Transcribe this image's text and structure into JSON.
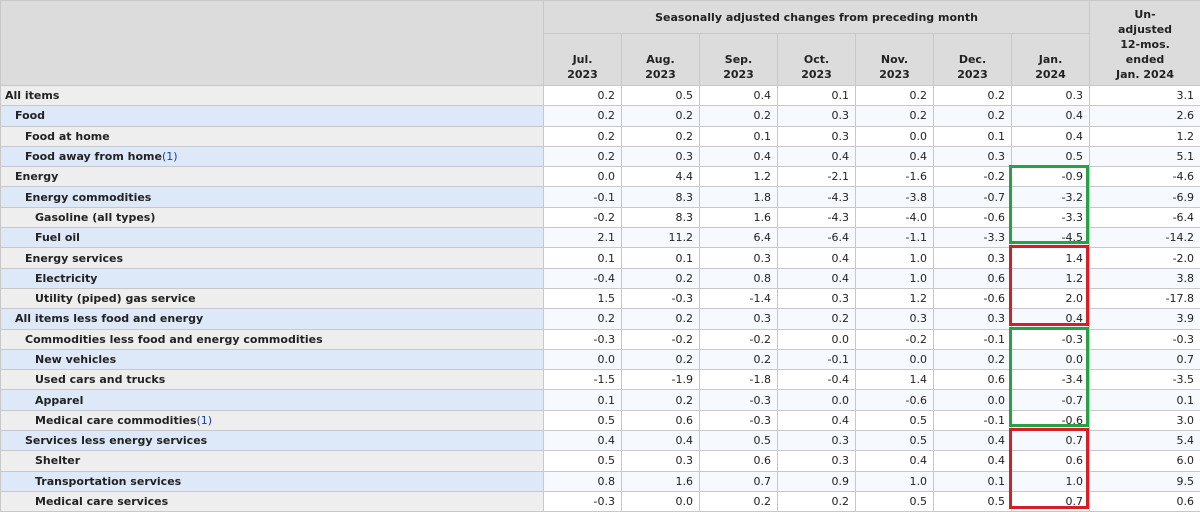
{
  "header": {
    "group_label": "Seasonally adjusted changes from preceding month",
    "months": [
      {
        "line1": "Jul.",
        "line2": "2023"
      },
      {
        "line1": "Aug.",
        "line2": "2023"
      },
      {
        "line1": "Sep.",
        "line2": "2023"
      },
      {
        "line1": "Oct.",
        "line2": "2023"
      },
      {
        "line1": "Nov.",
        "line2": "2023"
      },
      {
        "line1": "Dec.",
        "line2": "2023"
      },
      {
        "line1": "Jan.",
        "line2": "2024"
      }
    ],
    "unadjusted": {
      "l1": "Un-",
      "l2": "adjusted",
      "l3": "12-mos.",
      "l4": "ended",
      "l5": "Jan. 2024"
    }
  },
  "rows": [
    {
      "label": "All items",
      "values": [
        "0.2",
        "0.5",
        "0.4",
        "0.1",
        "0.2",
        "0.2",
        "0.3",
        "3.1"
      ]
    },
    {
      "label": "Food",
      "values": [
        "0.2",
        "0.2",
        "0.2",
        "0.3",
        "0.2",
        "0.2",
        "0.4",
        "2.6"
      ]
    },
    {
      "label": "Food at home",
      "values": [
        "0.2",
        "0.2",
        "0.1",
        "0.3",
        "0.0",
        "0.1",
        "0.4",
        "1.2"
      ]
    },
    {
      "label": "Food away from home",
      "footnote": "(1)",
      "values": [
        "0.2",
        "0.3",
        "0.4",
        "0.4",
        "0.4",
        "0.3",
        "0.5",
        "5.1"
      ]
    },
    {
      "label": "Energy",
      "values": [
        "0.0",
        "4.4",
        "1.2",
        "-2.1",
        "-1.6",
        "-0.2",
        "-0.9",
        "-4.6"
      ]
    },
    {
      "label": "Energy commodities",
      "values": [
        "-0.1",
        "8.3",
        "1.8",
        "-4.3",
        "-3.8",
        "-0.7",
        "-3.2",
        "-6.9"
      ]
    },
    {
      "label": "Gasoline (all types)",
      "values": [
        "-0.2",
        "8.3",
        "1.6",
        "-4.3",
        "-4.0",
        "-0.6",
        "-3.3",
        "-6.4"
      ]
    },
    {
      "label": "Fuel oil",
      "values": [
        "2.1",
        "11.2",
        "6.4",
        "-6.4",
        "-1.1",
        "-3.3",
        "-4.5",
        "-14.2"
      ]
    },
    {
      "label": "Energy services",
      "values": [
        "0.1",
        "0.1",
        "0.3",
        "0.4",
        "1.0",
        "0.3",
        "1.4",
        "-2.0"
      ]
    },
    {
      "label": "Electricity",
      "values": [
        "-0.4",
        "0.2",
        "0.8",
        "0.4",
        "1.0",
        "0.6",
        "1.2",
        "3.8"
      ]
    },
    {
      "label": "Utility (piped) gas service",
      "values": [
        "1.5",
        "-0.3",
        "-1.4",
        "0.3",
        "1.2",
        "-0.6",
        "2.0",
        "-17.8"
      ]
    },
    {
      "label": "All items less food and energy",
      "values": [
        "0.2",
        "0.2",
        "0.3",
        "0.2",
        "0.3",
        "0.3",
        "0.4",
        "3.9"
      ]
    },
    {
      "label": "Commodities less food and energy commodities",
      "values": [
        "-0.3",
        "-0.2",
        "-0.2",
        "0.0",
        "-0.2",
        "-0.1",
        "-0.3",
        "-0.3"
      ]
    },
    {
      "label": "New vehicles",
      "values": [
        "0.0",
        "0.2",
        "0.2",
        "-0.1",
        "0.0",
        "0.2",
        "0.0",
        "0.7"
      ]
    },
    {
      "label": "Used cars and trucks",
      "values": [
        "-1.5",
        "-1.9",
        "-1.8",
        "-0.4",
        "1.4",
        "0.6",
        "-3.4",
        "-3.5"
      ]
    },
    {
      "label": "Apparel",
      "values": [
        "0.1",
        "0.2",
        "-0.3",
        "0.0",
        "-0.6",
        "0.0",
        "-0.7",
        "0.1"
      ]
    },
    {
      "label": "Medical care commodities",
      "footnote": "(1)",
      "values": [
        "0.5",
        "0.6",
        "-0.3",
        "0.4",
        "0.5",
        "-0.1",
        "-0.6",
        "3.0"
      ]
    },
    {
      "label": "Services less energy services",
      "values": [
        "0.4",
        "0.4",
        "0.5",
        "0.3",
        "0.5",
        "0.4",
        "0.7",
        "5.4"
      ]
    },
    {
      "label": "Shelter",
      "values": [
        "0.5",
        "0.3",
        "0.6",
        "0.3",
        "0.4",
        "0.4",
        "0.6",
        "6.0"
      ]
    },
    {
      "label": "Transportation services",
      "values": [
        "0.8",
        "1.6",
        "0.7",
        "0.9",
        "1.0",
        "0.1",
        "1.0",
        "9.5"
      ]
    },
    {
      "label": "Medical care services",
      "values": [
        "-0.3",
        "0.0",
        "0.2",
        "0.2",
        "0.5",
        "0.5",
        "0.7",
        "0.6"
      ]
    }
  ],
  "highlights": {
    "green": "#26a244",
    "red": "#d61e26"
  }
}
